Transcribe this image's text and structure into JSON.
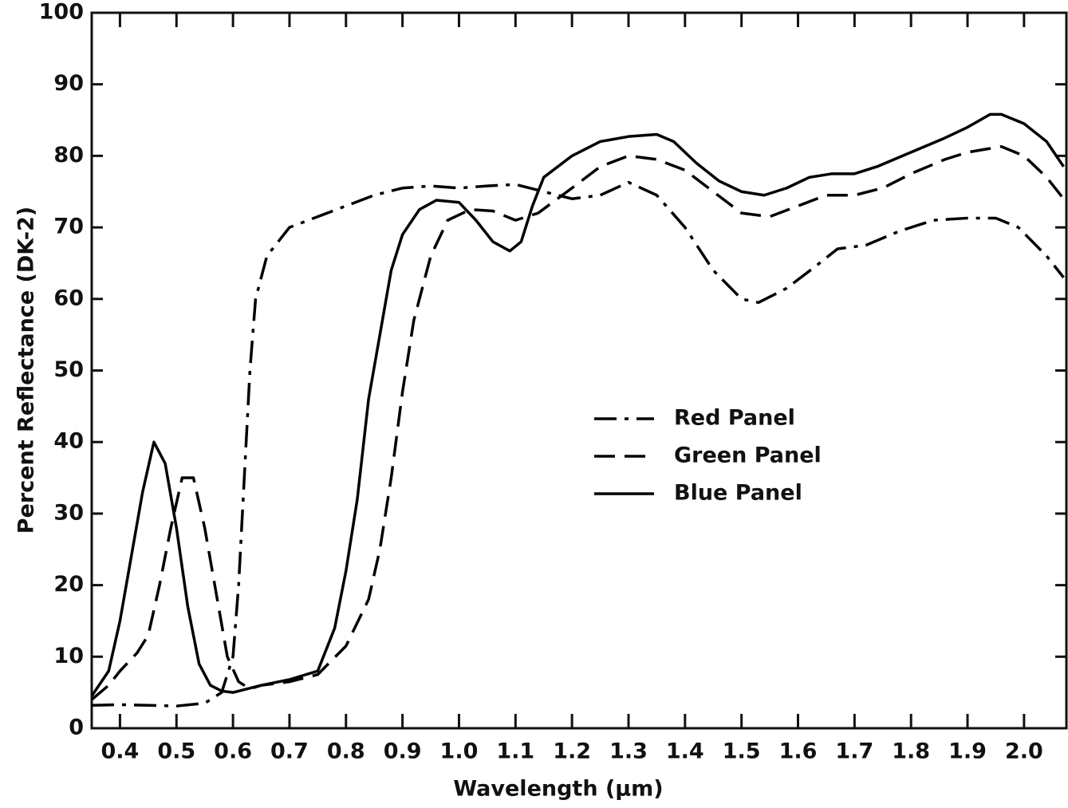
{
  "chart_data": {
    "type": "line",
    "xlabel": "Wavelength (μm)",
    "ylabel": "Percent Reflectance (DK-2)",
    "xlim": [
      0.35,
      2.075
    ],
    "ylim": [
      0,
      100
    ],
    "xticks": [
      0.4,
      0.5,
      0.6,
      0.7,
      0.8,
      0.9,
      {
        "value": 1.0,
        "label": "1.0"
      },
      1.1,
      1.2,
      1.3,
      1.4,
      1.5,
      1.6,
      1.7,
      1.8,
      1.9,
      {
        "value": 2.0,
        "label": "2.0"
      }
    ],
    "yticks": [
      0,
      10,
      20,
      30,
      40,
      50,
      60,
      70,
      80,
      90,
      100
    ],
    "grid": false,
    "legend": "center-right",
    "series": [
      {
        "name": "Red Panel",
        "color": "#000000",
        "linestyle": "dashdot",
        "x": [
          0.35,
          0.4,
          0.45,
          0.5,
          0.55,
          0.58,
          0.6,
          0.61,
          0.62,
          0.63,
          0.64,
          0.66,
          0.7,
          0.75,
          0.8,
          0.85,
          0.9,
          0.95,
          1.0,
          1.05,
          1.1,
          1.15,
          1.2,
          1.25,
          1.3,
          1.35,
          1.4,
          1.45,
          1.5,
          1.53,
          1.58,
          1.63,
          1.67,
          1.72,
          1.78,
          1.84,
          1.9,
          1.95,
          1.99,
          2.04,
          2.07
        ],
        "values": [
          3.2,
          3.3,
          3.2,
          3.1,
          3.5,
          5,
          10,
          20,
          35,
          50,
          60,
          66,
          70,
          71.5,
          73,
          74.5,
          75.5,
          75.8,
          75.5,
          75.8,
          76,
          75,
          74,
          74.5,
          76.3,
          74.5,
          70,
          64,
          60,
          59.5,
          61.5,
          64.5,
          67,
          67.5,
          69.5,
          71,
          71.3,
          71.3,
          70,
          66,
          63
        ]
      },
      {
        "name": "Green Panel",
        "color": "#000000",
        "linestyle": "dashed",
        "x": [
          0.35,
          0.38,
          0.4,
          0.43,
          0.45,
          0.47,
          0.49,
          0.51,
          0.53,
          0.55,
          0.57,
          0.59,
          0.61,
          0.63,
          0.65,
          0.7,
          0.75,
          0.8,
          0.84,
          0.86,
          0.88,
          0.9,
          0.92,
          0.95,
          0.98,
          1.02,
          1.06,
          1.1,
          1.14,
          1.2,
          1.25,
          1.3,
          1.35,
          1.4,
          1.45,
          1.5,
          1.55,
          1.6,
          1.65,
          1.7,
          1.75,
          1.8,
          1.86,
          1.9,
          1.96,
          2.0,
          2.04,
          2.07
        ],
        "values": [
          4,
          6,
          8,
          10.5,
          13,
          20,
          28,
          35,
          35,
          28,
          19,
          10,
          6.5,
          5.5,
          6,
          6.5,
          7.5,
          11.5,
          18,
          25,
          35,
          47,
          57,
          66,
          71,
          72.5,
          72.3,
          71,
          72,
          75.5,
          78.5,
          80,
          79.5,
          78,
          75,
          72,
          71.5,
          73,
          74.5,
          74.5,
          75.5,
          77.5,
          79.5,
          80.5,
          81.3,
          80,
          77,
          74
        ]
      },
      {
        "name": "Blue Panel",
        "color": "#000000",
        "linestyle": "solid",
        "x": [
          0.35,
          0.38,
          0.4,
          0.42,
          0.44,
          0.46,
          0.48,
          0.5,
          0.52,
          0.54,
          0.56,
          0.58,
          0.6,
          0.65,
          0.7,
          0.75,
          0.78,
          0.8,
          0.82,
          0.84,
          0.86,
          0.88,
          0.9,
          0.93,
          0.96,
          1.0,
          1.03,
          1.06,
          1.09,
          1.11,
          1.13,
          1.15,
          1.2,
          1.25,
          1.3,
          1.35,
          1.38,
          1.42,
          1.46,
          1.5,
          1.54,
          1.58,
          1.62,
          1.66,
          1.7,
          1.74,
          1.8,
          1.86,
          1.9,
          1.94,
          1.96,
          2.0,
          2.04,
          2.07
        ],
        "values": [
          4.5,
          8,
          15,
          24,
          33,
          40,
          37,
          28,
          17,
          9,
          6,
          5.2,
          5,
          6,
          6.8,
          8,
          14,
          22,
          32,
          46,
          55,
          64,
          69,
          72.5,
          73.8,
          73.5,
          71,
          68,
          66.7,
          68,
          73,
          77,
          80,
          82,
          82.7,
          83,
          82,
          79,
          76.5,
          75,
          74.5,
          75.5,
          77,
          77.5,
          77.5,
          78.5,
          80.5,
          82.5,
          84,
          85.8,
          85.8,
          84.5,
          82,
          78.5
        ]
      }
    ]
  }
}
